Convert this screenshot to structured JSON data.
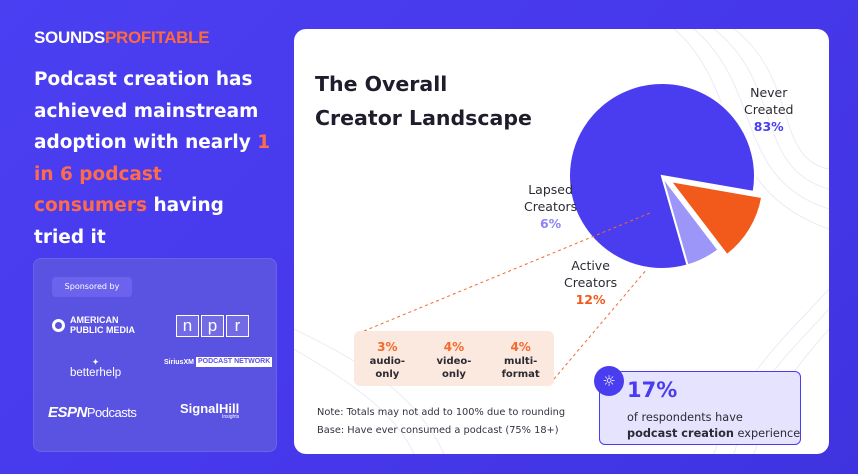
{
  "brand": {
    "part1": "SOUNDS",
    "part2": "PROFITABLE"
  },
  "headline": {
    "text1": "Podcast creation has achieved mainstream adoption with nearly ",
    "highlight": "1 in 6 podcast consumers",
    "text2": " having tried it"
  },
  "sponsors": {
    "label": "Sponsored by",
    "apm": "AMERICAN PUBLIC MEDIA",
    "npr": [
      "n",
      "p",
      "r"
    ],
    "betterhelp": "betterhelp",
    "siriusxm": "SiriusXM",
    "siriusxm_badge": "PODCAST NETWORK",
    "espn": "ESPN",
    "espn_suffix": "Podcasts",
    "signalhill": "SignalHill",
    "signalhill_sub": "Insights"
  },
  "colors": {
    "never": "#4a3df0",
    "lapsed": "#9b96f7",
    "active": "#f25a1c",
    "accent": "#ff6a3d"
  },
  "chart_data": {
    "type": "pie",
    "title": "The Overall Creator Landscape",
    "slices": [
      {
        "key": "never",
        "label": "Never Created",
        "value": 83,
        "display": "83%"
      },
      {
        "key": "active",
        "label": "Active Creators",
        "value": 12,
        "display": "12%"
      },
      {
        "key": "lapsed",
        "label": "Lapsed Creators",
        "value": 6,
        "display": "6%"
      }
    ],
    "breakdown_of": "Active Creators",
    "breakdown": [
      {
        "label": "audio-only",
        "value": 3,
        "display": "3%"
      },
      {
        "label": "video-only",
        "value": 4,
        "display": "4%"
      },
      {
        "label": "multi-format",
        "value": 4,
        "display": "4%"
      }
    ]
  },
  "labels": {
    "never_l1": "Never",
    "never_l2": "Created",
    "lapsed_l1": "Lapsed",
    "lapsed_l2": "Creators",
    "active_l1": "Active",
    "active_l2": "Creators",
    "bd1_l1": "audio-",
    "bd1_l2": "only",
    "bd2_l1": "video-",
    "bd2_l2": "only",
    "bd3_l1": "multi-",
    "bd3_l2": "format"
  },
  "title": {
    "line1": "The Overall",
    "line2": "Creator Landscape"
  },
  "notes": {
    "line1": "Note: Totals may not add to 100% due to rounding",
    "line2": "Base: Have ever consumed a podcast (75% 18+)"
  },
  "callout": {
    "value": "17%",
    "text1": "of respondents have",
    "bold": "podcast creation",
    "text2": " experience"
  }
}
